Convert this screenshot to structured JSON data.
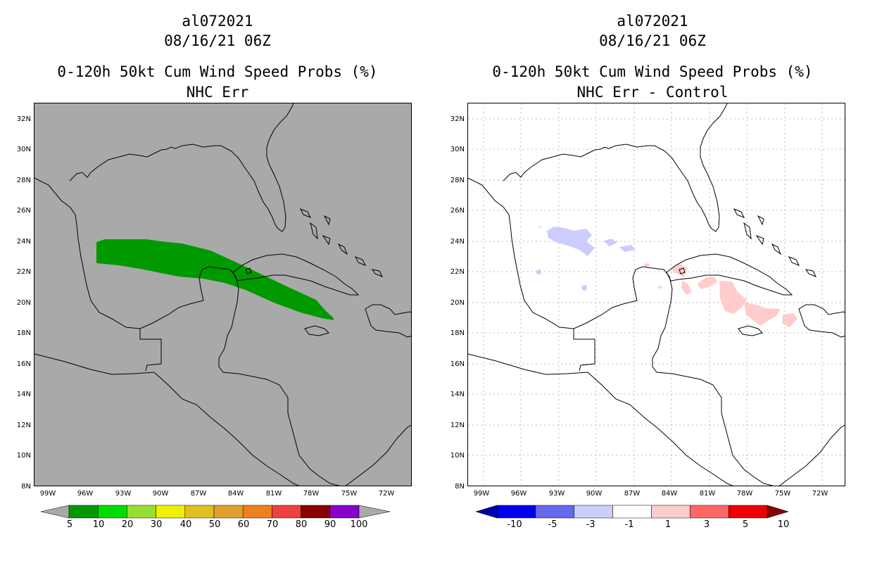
{
  "left_panel": {
    "title_line1": "al072021",
    "title_line2": "08/16/21 06Z",
    "title_line3": "0-120h 50kt Cum Wind Speed Probs (%)",
    "title_line4": "NHC Err",
    "background_color": "#a9a9a9",
    "swath_color": "#009900",
    "colorbar": {
      "colors": [
        "#009900",
        "#00dd00",
        "#99dd33",
        "#f0f000",
        "#e0c020",
        "#e0a030",
        "#ee8020",
        "#ee4040",
        "#880000",
        "#8800cc"
      ],
      "labels": [
        "5",
        "10",
        "20",
        "30",
        "40",
        "50",
        "60",
        "70",
        "80",
        "90",
        "100"
      ]
    }
  },
  "right_panel": {
    "title_line1": "al072021",
    "title_line2": "08/16/21 06Z",
    "title_line3": "0-120h 50kt Cum Wind Speed Probs (%)",
    "title_line4": "NHC Err - Control",
    "background_color": "#ffffff",
    "negative_color": "#ccccff",
    "positive_color": "#ffcccc",
    "colorbar": {
      "colors": [
        "#0000aa",
        "#0000ee",
        "#6666ee",
        "#ccccff",
        "#ffffff",
        "#ffcccc",
        "#ff6666",
        "#ee0000",
        "#880000"
      ],
      "labels": [
        "-10",
        "-5",
        "-3",
        "-1",
        "1",
        "3",
        "5",
        "10"
      ]
    }
  },
  "axes": {
    "latitude_labels": [
      "32N",
      "30N",
      "28N",
      "26N",
      "24N",
      "22N",
      "20N",
      "18N",
      "16N",
      "14N",
      "12N",
      "10N",
      "8N"
    ],
    "longitude_labels": [
      "99W",
      "96W",
      "93W",
      "90W",
      "87W",
      "84W",
      "81W",
      "78W",
      "75W",
      "72W"
    ]
  }
}
